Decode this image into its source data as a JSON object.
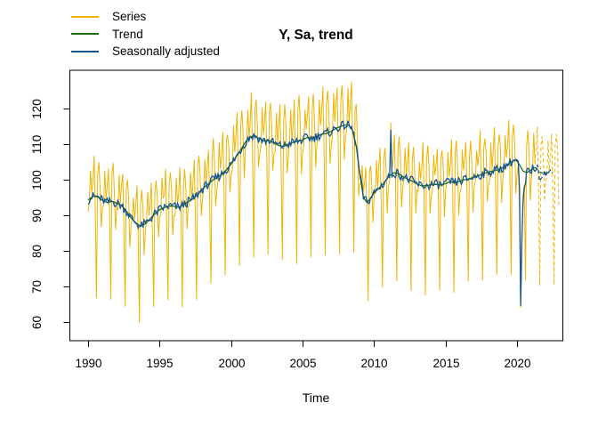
{
  "window": {
    "kind": "r-plot-device"
  },
  "chart_data": {
    "type": "line",
    "title": "Y, Sa, trend",
    "xlabel": "Time",
    "ylabel": "",
    "x_ticks": [
      1990,
      1995,
      2000,
      2005,
      2010,
      2015,
      2020
    ],
    "y_ticks": [
      60,
      70,
      80,
      90,
      100,
      110,
      120
    ],
    "xlim": [
      1988.72,
      2023.2
    ],
    "ylim": [
      54.75,
      130.75
    ],
    "grid": false,
    "legend_position": "topleft",
    "legend": [
      {
        "name": "Series",
        "color": "#F0B400"
      },
      {
        "name": "Trend",
        "color": "#1E6C0B"
      },
      {
        "name": "Seasonally adjusted",
        "color": "#155692"
      }
    ],
    "frequency": 12,
    "start": 1990,
    "n_observed": 376,
    "n_forecast": 20,
    "sa_trend_forecast_months": 15,
    "forecast_linetype": "dashed",
    "trend_points": [
      [
        1990.0,
        94.3
      ],
      [
        1990.33,
        95.3
      ],
      [
        1990.67,
        95.2
      ],
      [
        1991.0,
        94.2
      ],
      [
        1991.33,
        93.6
      ],
      [
        1991.67,
        93.9
      ],
      [
        1992.0,
        93.4
      ],
      [
        1992.33,
        92.8
      ],
      [
        1992.67,
        91.2
      ],
      [
        1993.0,
        89.3
      ],
      [
        1993.33,
        87.9
      ],
      [
        1993.67,
        86.9
      ],
      [
        1994.0,
        87.6
      ],
      [
        1994.33,
        89.0
      ],
      [
        1994.67,
        90.4
      ],
      [
        1995.0,
        91.6
      ],
      [
        1995.33,
        92.2
      ],
      [
        1995.67,
        92.6
      ],
      [
        1996.0,
        92.5
      ],
      [
        1996.33,
        92.2
      ],
      [
        1996.67,
        92.9
      ],
      [
        1997.0,
        93.8
      ],
      [
        1997.33,
        94.6
      ],
      [
        1997.67,
        95.9
      ],
      [
        1998.0,
        97.4
      ],
      [
        1998.33,
        98.6
      ],
      [
        1998.67,
        99.7
      ],
      [
        1999.0,
        100.6
      ],
      [
        1999.33,
        101.5
      ],
      [
        1999.67,
        102.8
      ],
      [
        2000.0,
        104.4
      ],
      [
        2000.33,
        106.3
      ],
      [
        2000.67,
        108.4
      ],
      [
        2001.0,
        110.6
      ],
      [
        2001.33,
        112.1
      ],
      [
        2001.67,
        112.3
      ],
      [
        2002.0,
        111.4
      ],
      [
        2002.33,
        110.9
      ],
      [
        2002.67,
        111.0
      ],
      [
        2003.0,
        110.3
      ],
      [
        2003.33,
        109.6
      ],
      [
        2003.67,
        109.4
      ],
      [
        2004.0,
        110.0
      ],
      [
        2004.33,
        110.5
      ],
      [
        2004.67,
        110.8
      ],
      [
        2005.0,
        111.2
      ],
      [
        2005.33,
        111.9
      ],
      [
        2005.67,
        111.6
      ],
      [
        2006.0,
        112.2
      ],
      [
        2006.33,
        112.8
      ],
      [
        2006.67,
        113.0
      ],
      [
        2007.0,
        113.6
      ],
      [
        2007.33,
        114.4
      ],
      [
        2007.67,
        115.0
      ],
      [
        2008.0,
        115.4
      ],
      [
        2008.25,
        115.2
      ],
      [
        2008.5,
        113.8
      ],
      [
        2008.75,
        109.5
      ],
      [
        2009.0,
        101.5
      ],
      [
        2009.25,
        95.0
      ],
      [
        2009.5,
        93.6
      ],
      [
        2009.75,
        94.8
      ],
      [
        2010.0,
        96.3
      ],
      [
        2010.33,
        97.6
      ],
      [
        2010.67,
        99.0
      ],
      [
        2011.0,
        100.8
      ],
      [
        2011.33,
        101.9
      ],
      [
        2011.67,
        101.8
      ],
      [
        2012.0,
        100.9
      ],
      [
        2012.33,
        100.2
      ],
      [
        2012.67,
        99.6
      ],
      [
        2013.0,
        98.8
      ],
      [
        2013.33,
        98.3
      ],
      [
        2013.67,
        98.3
      ],
      [
        2014.0,
        98.6
      ],
      [
        2014.33,
        98.7
      ],
      [
        2014.67,
        98.5
      ],
      [
        2015.0,
        98.9
      ],
      [
        2015.33,
        99.4
      ],
      [
        2015.67,
        99.2
      ],
      [
        2016.0,
        99.6
      ],
      [
        2016.33,
        100.0
      ],
      [
        2016.67,
        100.3
      ],
      [
        2017.0,
        100.8
      ],
      [
        2017.33,
        101.2
      ],
      [
        2017.67,
        101.7
      ],
      [
        2018.0,
        102.2
      ],
      [
        2018.33,
        102.5
      ],
      [
        2018.67,
        102.8
      ],
      [
        2019.0,
        103.4
      ],
      [
        2019.33,
        104.3
      ],
      [
        2019.67,
        105.2
      ],
      [
        2019.92,
        105.6
      ],
      [
        2020.17,
        104.2
      ],
      [
        2020.42,
        102.4
      ],
      [
        2020.67,
        102.0
      ],
      [
        2020.92,
        102.5
      ],
      [
        2021.17,
        103.4
      ],
      [
        2021.33,
        103.3
      ],
      [
        2021.58,
        102.2
      ],
      [
        2021.83,
        101.8
      ],
      [
        2022.08,
        101.9
      ],
      [
        2022.5,
        102.0
      ]
    ],
    "seasonal_pct": [
      -2.5,
      -1,
      8,
      1.5,
      5,
      11,
      -5,
      -30,
      7,
      10.5,
      4.5,
      -8.5
    ],
    "noise": {
      "series_amp": 1.5,
      "sa_amp": 1.3
    },
    "overrides": {
      "series": {
        "254": 116,
        "362": 92,
        "363": 64,
        "364": 79,
        "365": 96
      },
      "sa": {
        "254": 114,
        "362": 97.5,
        "363": 64.5,
        "364": 83,
        "365": 94,
        "366": 97.5,
        "367": 99,
        "379": 99.6,
        "380": 100.3
      }
    }
  }
}
